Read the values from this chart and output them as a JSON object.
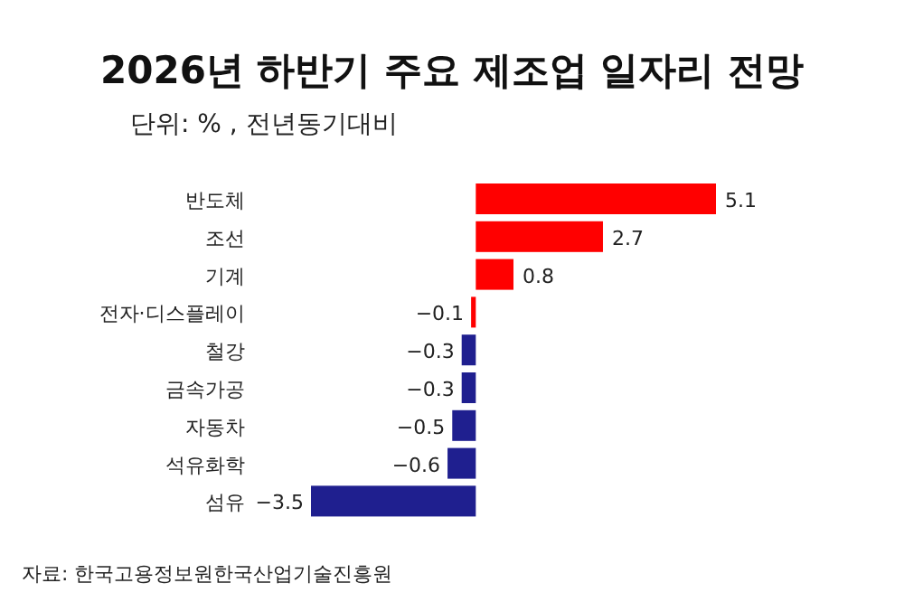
{
  "chart_data": {
    "type": "bar",
    "orientation": "horizontal",
    "title": "2026년 하반기 주요 제조업 일자리 전망",
    "subtitle": "단위: % , 전년동기대비",
    "categories": [
      "반도체",
      "조선",
      "기계",
      "전자·디스플레이",
      "철강",
      "금속가공",
      "자동차",
      "석유화학",
      "섬유"
    ],
    "values": [
      5.1,
      2.7,
      0.8,
      -0.1,
      -0.3,
      -0.3,
      -0.5,
      -0.6,
      -3.5
    ],
    "colors": [
      "#ff0000",
      "#ff0000",
      "#ff0000",
      "#ff0000",
      "#1f1f8f",
      "#1f1f8f",
      "#1f1f8f",
      "#1f1f8f",
      "#1f1f8f"
    ],
    "data_labels": true,
    "annotations": [
      "자료: 한국고용정보원한국산업기술진흥원"
    ]
  }
}
